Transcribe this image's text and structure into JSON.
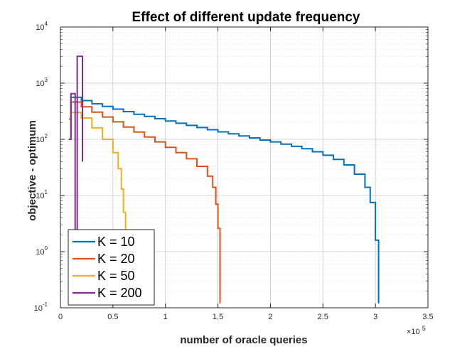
{
  "chart_data": {
    "type": "line",
    "title": "Effect of different update frequency",
    "xlabel": "number of oracle queries",
    "ylabel": "objective - optimum",
    "x_multiplier_label": "×10",
    "x_multiplier_exponent": "5",
    "xlim": [
      0,
      350000
    ],
    "ylim": [
      0.1,
      10000
    ],
    "yscale": "log",
    "grid": true,
    "minor_grid": true,
    "x_ticks": [
      0,
      50000,
      100000,
      150000,
      200000,
      250000,
      300000,
      350000
    ],
    "x_tick_labels": [
      "0",
      "0.5",
      "1",
      "1.5",
      "2",
      "2.5",
      "3",
      "3.5"
    ],
    "y_ticks": [
      {
        "value": 0.1,
        "base": "10",
        "exp": "-1"
      },
      {
        "value": 1,
        "base": "10",
        "exp": "0"
      },
      {
        "value": 10,
        "base": "10",
        "exp": "1"
      },
      {
        "value": 100,
        "base": "10",
        "exp": "2"
      },
      {
        "value": 1000,
        "base": "10",
        "exp": "3"
      },
      {
        "value": 10000,
        "base": "10",
        "exp": "4"
      }
    ],
    "legend_position": "bottom-left",
    "series": [
      {
        "name": "K = 10",
        "color": "#0072BD",
        "points": [
          [
            8000,
            100
          ],
          [
            10000,
            560
          ],
          [
            20000,
            490
          ],
          [
            30000,
            430
          ],
          [
            40000,
            385
          ],
          [
            50000,
            345
          ],
          [
            60000,
            312
          ],
          [
            70000,
            280
          ],
          [
            80000,
            256
          ],
          [
            90000,
            233
          ],
          [
            100000,
            212
          ],
          [
            110000,
            193
          ],
          [
            120000,
            177
          ],
          [
            130000,
            162
          ],
          [
            140000,
            148
          ],
          [
            150000,
            136
          ],
          [
            160000,
            125
          ],
          [
            170000,
            115
          ],
          [
            180000,
            106
          ],
          [
            190000,
            97
          ],
          [
            200000,
            90
          ],
          [
            210000,
            82
          ],
          [
            220000,
            75
          ],
          [
            230000,
            68
          ],
          [
            240000,
            60
          ],
          [
            250000,
            52
          ],
          [
            260000,
            44
          ],
          [
            270000,
            35
          ],
          [
            280000,
            24
          ],
          [
            290000,
            14
          ],
          [
            295000,
            7.5
          ],
          [
            300000,
            1.6
          ],
          [
            303000,
            0.12
          ]
        ]
      },
      {
        "name": "K = 20",
        "color": "#D95319",
        "points": [
          [
            8000,
            230
          ],
          [
            10000,
            460
          ],
          [
            20000,
            380
          ],
          [
            30000,
            305
          ],
          [
            40000,
            250
          ],
          [
            50000,
            205
          ],
          [
            60000,
            165
          ],
          [
            70000,
            135
          ],
          [
            80000,
            110
          ],
          [
            90000,
            90
          ],
          [
            100000,
            72
          ],
          [
            110000,
            58
          ],
          [
            120000,
            45
          ],
          [
            130000,
            33
          ],
          [
            140000,
            22
          ],
          [
            145000,
            14
          ],
          [
            148000,
            7
          ],
          [
            150000,
            2.6
          ],
          [
            152000,
            0.12
          ]
        ]
      },
      {
        "name": "K = 50",
        "color": "#EDB120",
        "points": [
          [
            8000,
            100
          ],
          [
            10000,
            300
          ],
          [
            20000,
            240
          ],
          [
            30000,
            160
          ],
          [
            40000,
            100
          ],
          [
            50000,
            58
          ],
          [
            55000,
            30
          ],
          [
            58000,
            13
          ],
          [
            60000,
            5
          ],
          [
            62000,
            0.12
          ]
        ]
      },
      {
        "name": "K = 200",
        "color": "#7E2F8E",
        "points": [
          [
            8000,
            100
          ],
          [
            10000,
            650
          ],
          [
            13000,
            650
          ],
          [
            14000,
            0.12
          ],
          [
            15000,
            0.12
          ],
          [
            16000,
            3000
          ],
          [
            20000,
            3000
          ],
          [
            21000,
            40
          ]
        ]
      }
    ]
  }
}
